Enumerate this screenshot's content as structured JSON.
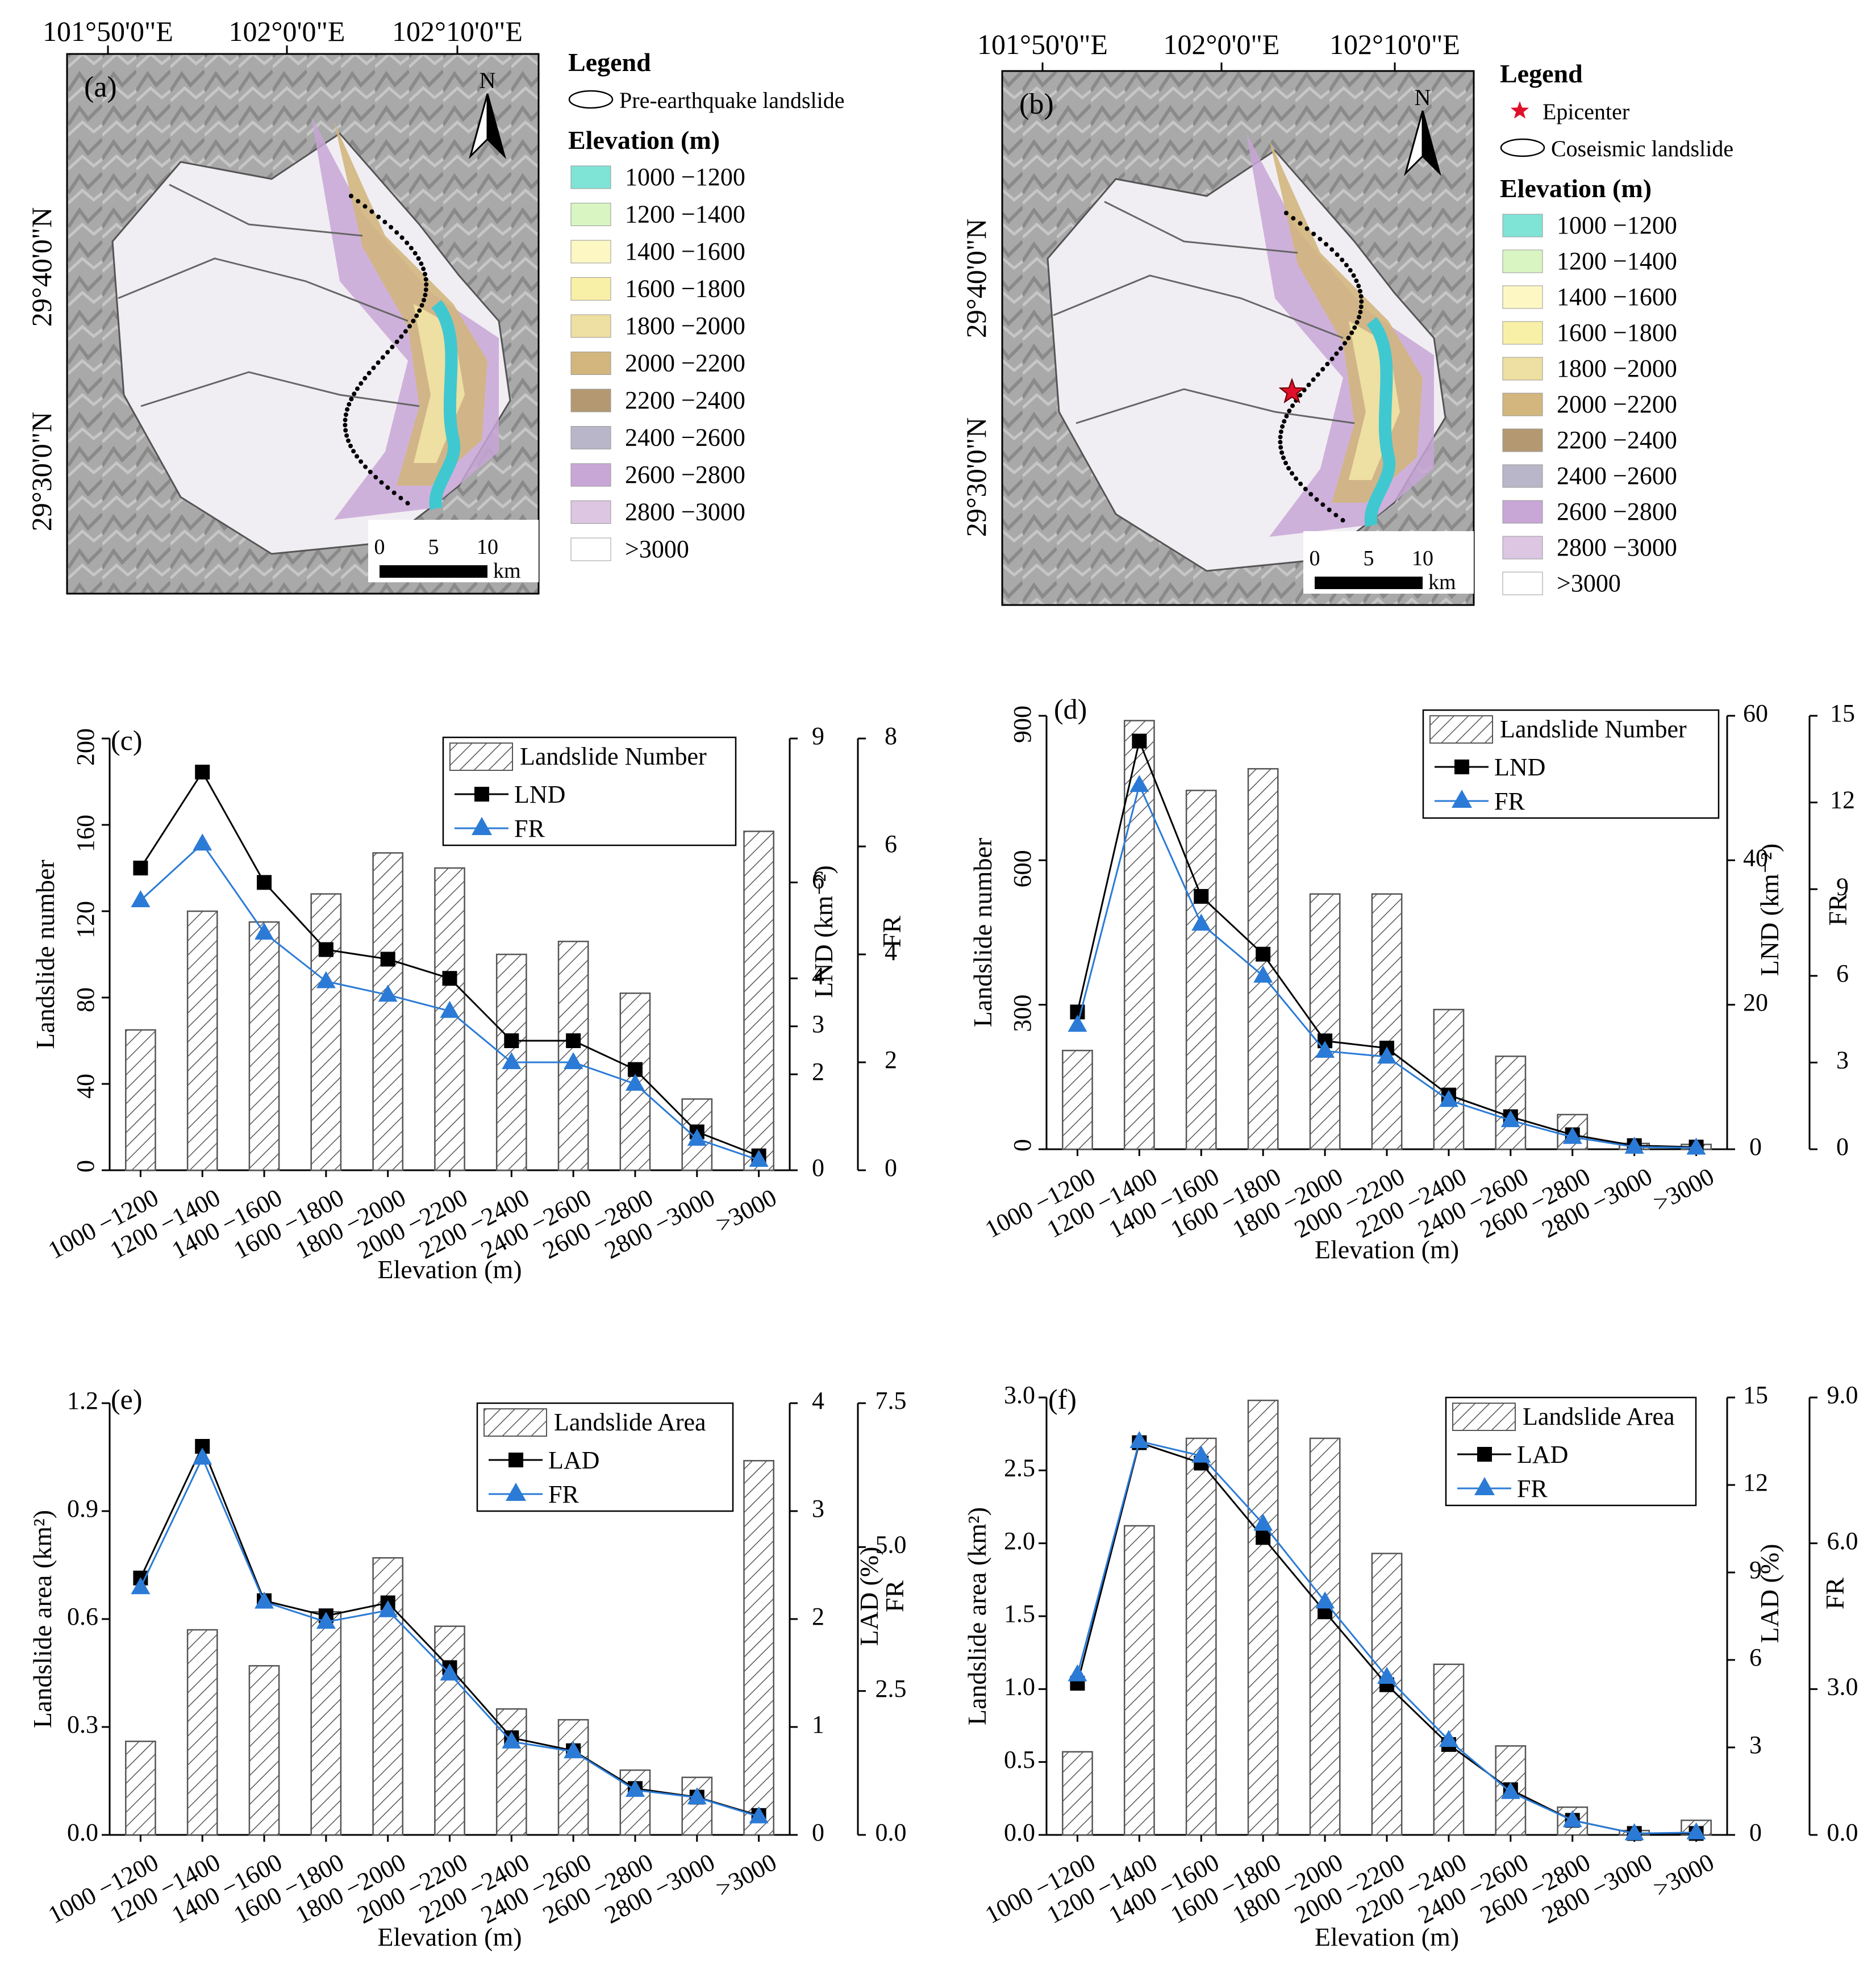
{
  "colors": {
    "bar_hatch": "#555555",
    "lnd_line": "#000000",
    "fr_line": "#2b7bd6",
    "epicenter": "#e0102a",
    "river": "#40c8d0",
    "elevation_classes": [
      "#7fe3d6",
      "#d8f5c2",
      "#fdf7c4",
      "#f9f0a8",
      "#eedfa2",
      "#d2b67e",
      "#b39872",
      "#b8b6c8",
      "#c8a6d6",
      "#dcc6e2",
      "#ffffff"
    ]
  },
  "maps": [
    {
      "panel": "(a)",
      "top_labels": [
        "101°50'0\"E",
        "102°0'0\"E",
        "102°10'0\"E"
      ],
      "left_labels": [
        "29°40'0\"N",
        "29°30'0\"N"
      ],
      "north": "N",
      "scale_numbers": [
        "0",
        "5",
        "10"
      ],
      "scale_unit": "km",
      "legend_title": "Legend",
      "legend_boundary": "Pre-earthquake landslide",
      "legend_epicenter": "",
      "elevation_title": "Elevation (m)",
      "elevation_classes": [
        "1000 −1200",
        "1200 −1400",
        "1400 −1600",
        "1600 −1800",
        "1800 −2000",
        "2000 −2200",
        "2200 −2400",
        "2400 −2600",
        "2600 −2800",
        "2800 −3000",
        ">3000"
      ]
    },
    {
      "panel": "(b)",
      "top_labels": [
        "101°50'0\"E",
        "102°0'0\"E",
        "102°10'0\"E"
      ],
      "left_labels": [
        "29°40'0\"N",
        "29°30'0\"N"
      ],
      "north": "N",
      "scale_numbers": [
        "0",
        "5",
        "10"
      ],
      "scale_unit": "km",
      "legend_title": "Legend",
      "legend_boundary": "Coseismic landslide",
      "legend_epicenter": "Epicenter",
      "elevation_title": "Elevation (m)",
      "elevation_classes": [
        "1000 −1200",
        "1200 −1400",
        "1400 −1600",
        "1600 −1800",
        "1800 −2000",
        "2000 −2200",
        "2200 −2400",
        "2400 −2600",
        "2600 −2800",
        "2800 −3000",
        ">3000"
      ]
    }
  ],
  "chart_data": [
    {
      "panel": "(c)",
      "type": "bar",
      "categories": [
        "1000 −1200",
        "1200 −1400",
        "1400 −1600",
        "1600 −1800",
        "1800 −2000",
        "2000 −2200",
        "2200 −2400",
        "2400 −2600",
        "2600 −2800",
        "2800 −3000",
        ">3000"
      ],
      "xlabel": "Elevation (m)",
      "bars": {
        "name": "Landslide Number",
        "values": [
          65,
          120,
          115,
          128,
          147,
          140,
          100,
          106,
          82,
          33,
          157
        ]
      },
      "left_axis": {
        "label": "Landslide number",
        "ylim": [
          0,
          200
        ],
        "ticks": [
          0,
          40,
          80,
          120,
          160,
          200
        ]
      },
      "lines": [
        {
          "name": "LND",
          "axis": "LND (km⁻²)",
          "marker": "square",
          "values": [
            6.3,
            8.3,
            6.0,
            4.6,
            4.4,
            4.0,
            2.7,
            2.7,
            2.1,
            0.8,
            0.3
          ]
        },
        {
          "name": "FR",
          "axis": "FR",
          "marker": "triangle",
          "values": [
            5.0,
            6.05,
            4.4,
            3.5,
            3.25,
            2.95,
            2.0,
            2.0,
            1.6,
            0.58,
            0.19
          ]
        }
      ],
      "right_axes": [
        {
          "label": "LND (km⁻²)",
          "ylim": [
            0,
            9
          ],
          "ticks": [
            0,
            2,
            3,
            4,
            6,
            9
          ]
        },
        {
          "label": "FR",
          "ylim": [
            0,
            8
          ],
          "ticks": [
            0,
            2,
            4,
            6,
            8
          ]
        }
      ],
      "legend": [
        "Landslide Number",
        "LND",
        "FR"
      ]
    },
    {
      "panel": "(d)",
      "type": "bar",
      "categories": [
        "1000 −1200",
        "1200 −1400",
        "1400 −1600",
        "1600 −1800",
        "1800 −2000",
        "2000 −2200",
        "2200 −2400",
        "2400 −2600",
        "2600 −2800",
        "2800 −3000",
        ">3000"
      ],
      "xlabel": "Elevation (m)",
      "bars": {
        "name": "Landslide Number",
        "values": [
          205,
          890,
          745,
          790,
          530,
          530,
          290,
          193,
          72,
          12,
          10
        ]
      },
      "left_axis": {
        "label": "Landslide number",
        "ylim": [
          0,
          900
        ],
        "ticks": [
          0,
          300,
          600,
          900
        ]
      },
      "lines": [
        {
          "name": "LND",
          "axis": "LND (km⁻²)",
          "marker": "square",
          "values": [
            19,
            56.5,
            35,
            27,
            15,
            14,
            7.5,
            4.5,
            2.0,
            0.5,
            0.3
          ]
        },
        {
          "name": "FR",
          "axis": "FR",
          "marker": "triangle",
          "values": [
            4.3,
            12.6,
            7.8,
            6.0,
            3.4,
            3.2,
            1.7,
            1.0,
            0.42,
            0.08,
            0.05
          ]
        }
      ],
      "right_axes": [
        {
          "label": "LND (km⁻²)",
          "ylim": [
            0,
            60
          ],
          "ticks": [
            0,
            20,
            40,
            60
          ]
        },
        {
          "label": "FR",
          "ylim": [
            0,
            15
          ],
          "ticks": [
            0,
            3,
            6,
            9,
            12,
            15
          ]
        }
      ],
      "legend": [
        "Landslide Number",
        "LND",
        "FR"
      ]
    },
    {
      "panel": "(e)",
      "type": "bar",
      "categories": [
        "1000 −1200",
        "1200 −1400",
        "1400 −1600",
        "1600 −1800",
        "1800 −2000",
        "2000 −2200",
        "2200 −2400",
        "2400 −2600",
        "2600 −2800",
        "2800 −3000",
        ">3000"
      ],
      "xlabel": "Elevation (m)",
      "bars": {
        "name": "Landslide Area",
        "values": [
          0.26,
          0.57,
          0.47,
          0.62,
          0.77,
          0.58,
          0.35,
          0.32,
          0.18,
          0.16,
          1.04
        ]
      },
      "left_axis": {
        "label": "Landslide area (km²)",
        "ylim": [
          0,
          1.2
        ],
        "ticks": [
          "0.0",
          "0.3",
          "0.6",
          "0.9",
          "1.2"
        ]
      },
      "lines": [
        {
          "name": "LAD",
          "axis": "LAD (%)",
          "marker": "square",
          "values": [
            2.38,
            3.6,
            2.17,
            2.03,
            2.15,
            1.55,
            0.9,
            0.78,
            0.43,
            0.35,
            0.18
          ]
        },
        {
          "name": "FR",
          "axis": "FR",
          "marker": "triangle",
          "values": [
            4.3,
            6.55,
            4.05,
            3.7,
            3.9,
            2.8,
            1.62,
            1.45,
            0.78,
            0.65,
            0.32
          ]
        }
      ],
      "right_axes": [
        {
          "label": "LAD (%)",
          "ylim": [
            0,
            4
          ],
          "ticks": [
            0,
            1,
            2,
            3,
            4
          ]
        },
        {
          "label": "FR",
          "ylim": [
            0,
            7.5
          ],
          "ticks": [
            "0.0",
            "2.5",
            "5.0",
            "7.5"
          ]
        }
      ],
      "legend": [
        "Landslide Area",
        "LAD",
        "FR"
      ]
    },
    {
      "panel": "(f)",
      "type": "bar",
      "categories": [
        "1000 −1200",
        "1200 −1400",
        "1400 −1600",
        "1600 −1800",
        "1800 −2000",
        "2000 −2200",
        "2200 −2400",
        "2400 −2600",
        "2600 −2800",
        "2800 −3000",
        ">3000"
      ],
      "xlabel": "Elevation (m)",
      "bars": {
        "name": "Landslide Area",
        "values": [
          0.57,
          2.12,
          2.72,
          2.98,
          2.72,
          1.93,
          1.17,
          0.61,
          0.19,
          0.03,
          0.1
        ]
      },
      "left_axis": {
        "label": "Landslide area (km²)",
        "ylim": [
          0,
          3.0
        ],
        "ticks": [
          "0.0",
          "0.5",
          "1.0",
          "1.5",
          "2.0",
          "2.5",
          "3.0"
        ]
      },
      "lines": [
        {
          "name": "LAD",
          "axis": "LAD (%)",
          "marker": "square",
          "values": [
            5.2,
            13.45,
            12.75,
            10.2,
            7.65,
            5.15,
            3.1,
            1.55,
            0.5,
            0.05,
            0.05
          ]
        },
        {
          "name": "FR",
          "axis": "FR",
          "marker": "triangle",
          "values": [
            3.3,
            8.1,
            7.8,
            6.4,
            4.8,
            3.25,
            1.95,
            0.88,
            0.3,
            0.03,
            0.05
          ]
        }
      ],
      "right_axes": [
        {
          "label": "LAD (%)",
          "ylim": [
            0,
            15
          ],
          "ticks": [
            0,
            3,
            6,
            9,
            12,
            15
          ]
        },
        {
          "label": "FR",
          "ylim": [
            0,
            9
          ],
          "ticks": [
            "0.0",
            "3.0",
            "6.0",
            "9.0"
          ]
        }
      ],
      "legend": [
        "Landslide Area",
        "LAD",
        "FR"
      ]
    }
  ]
}
